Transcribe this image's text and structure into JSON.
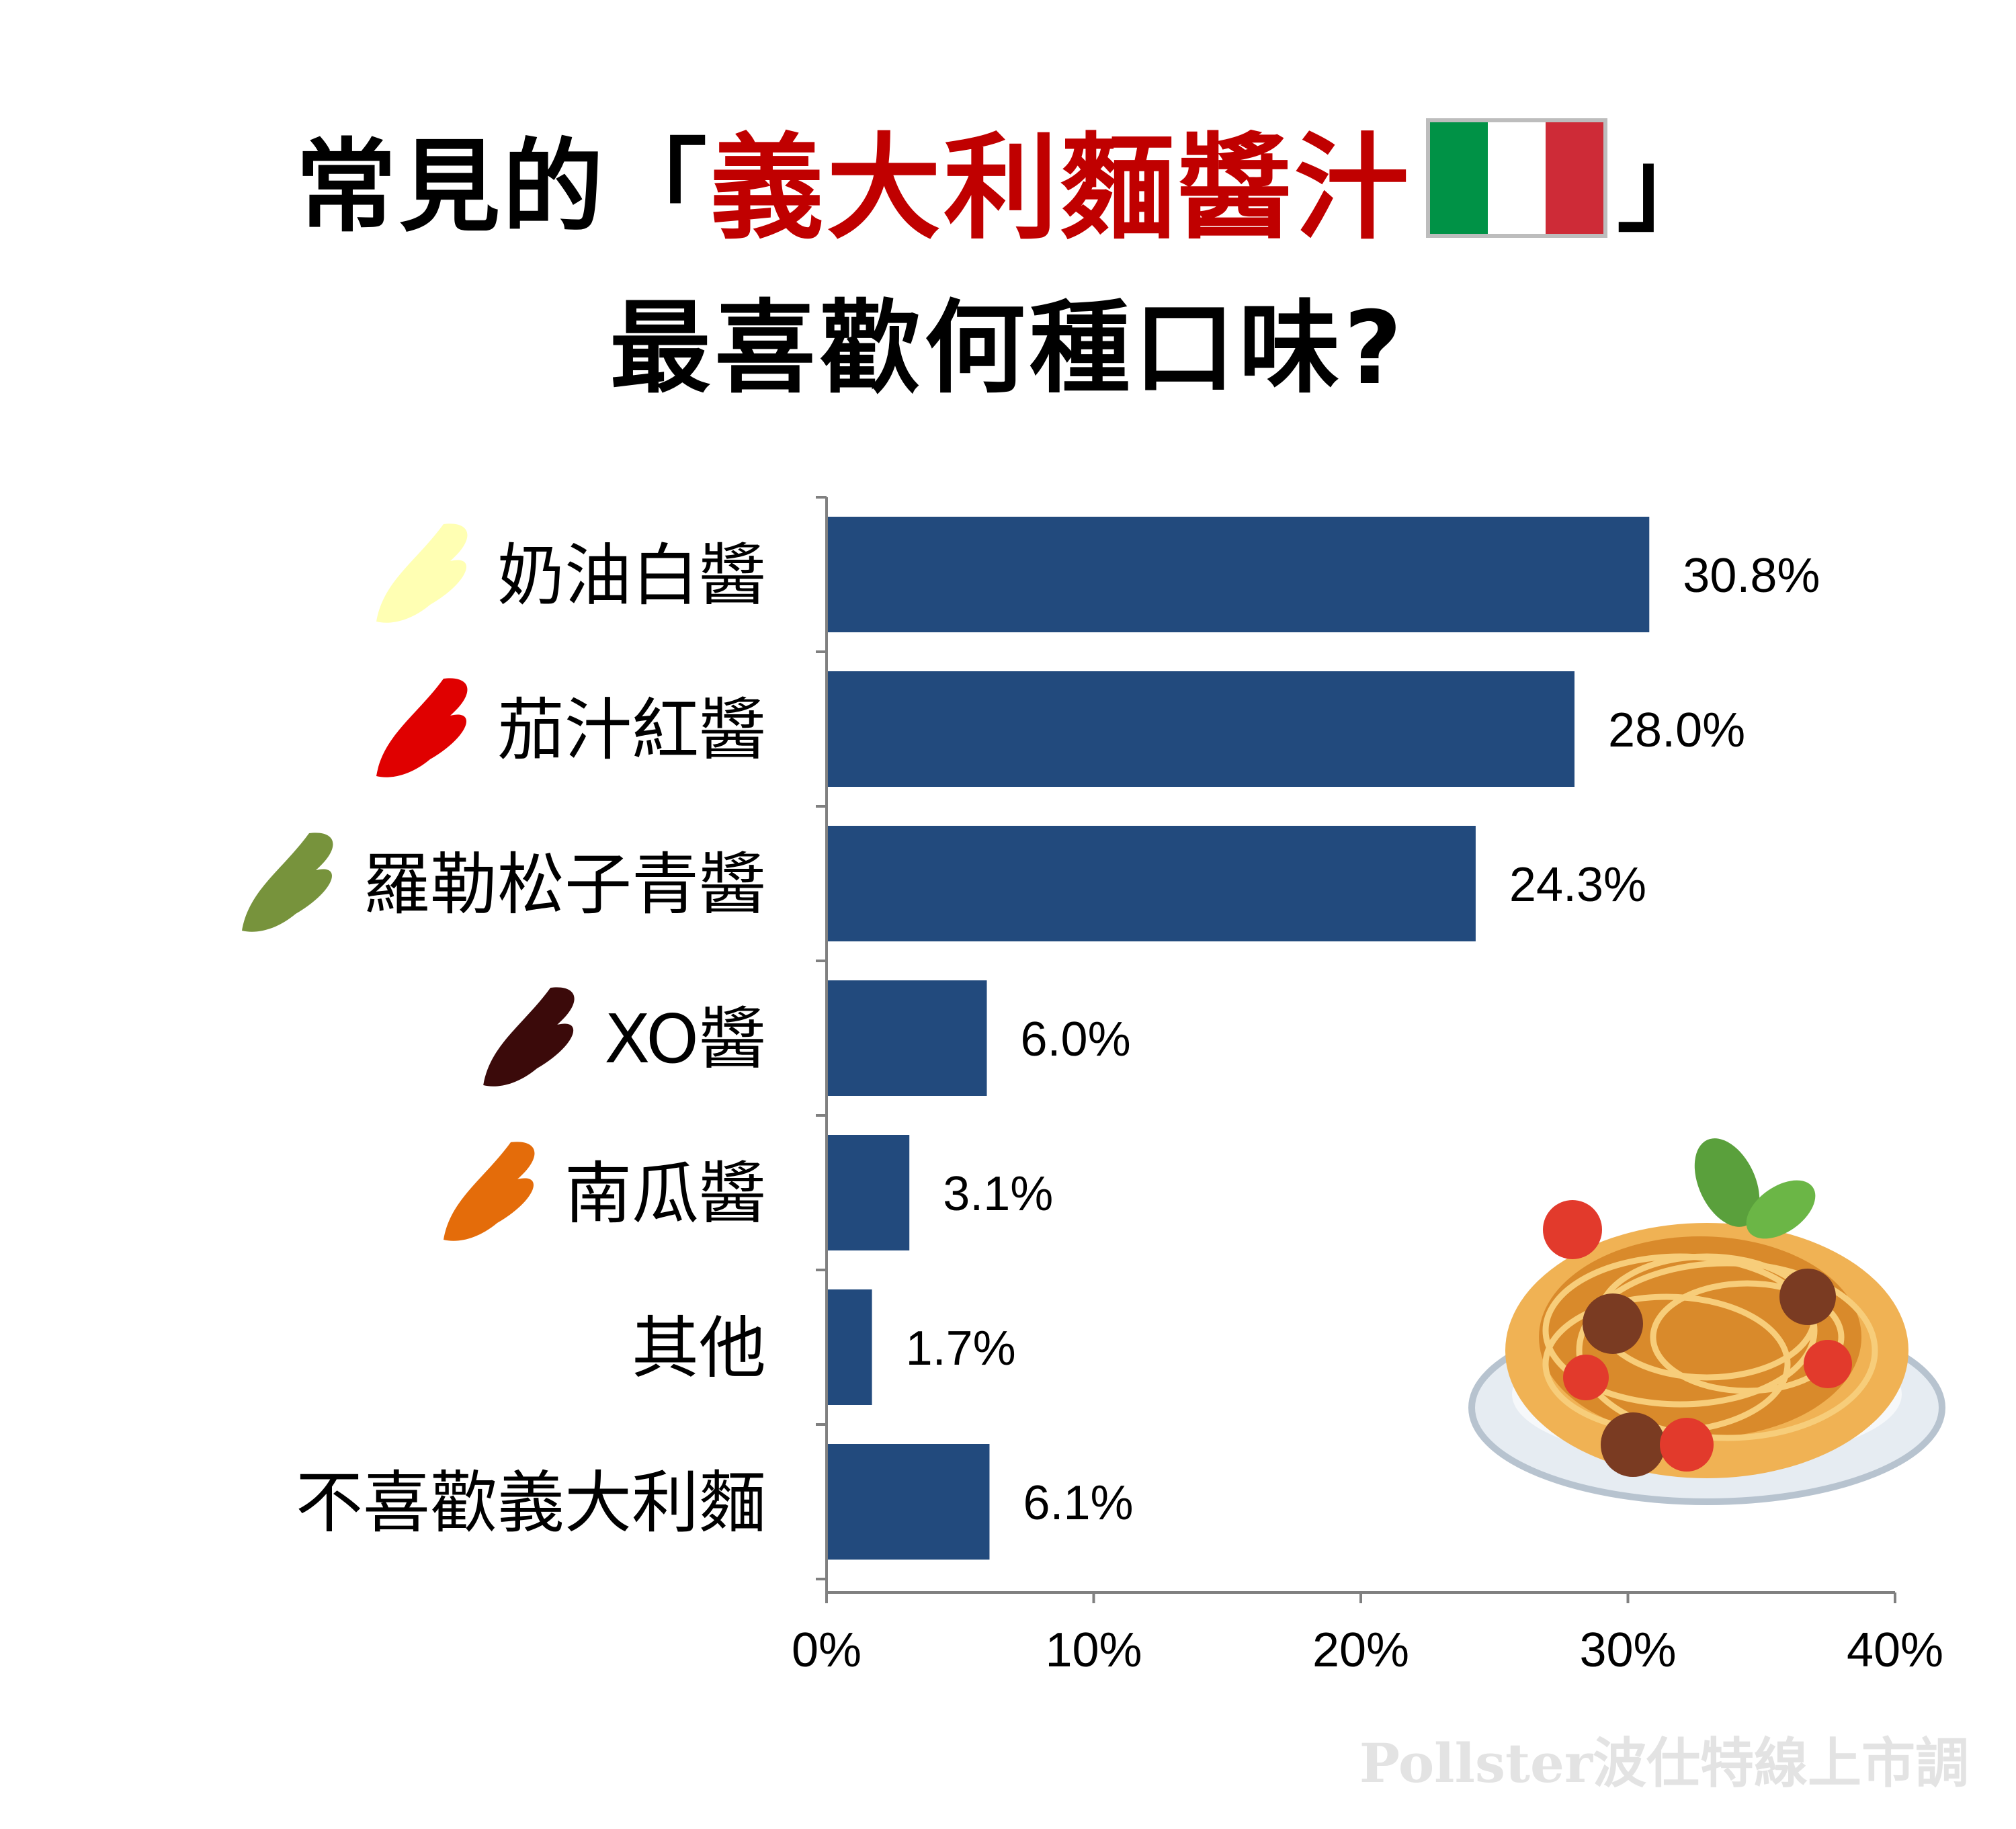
{
  "title": {
    "prefix": "常見的「",
    "highlight": "義大利麵醬汁",
    "suffix": "」",
    "line2": "最喜歡何種口味?"
  },
  "flag_colors": [
    "#009246",
    "#ffffff",
    "#ce2b37"
  ],
  "bar_color": "#224a7d",
  "chart_data": {
    "type": "bar",
    "orientation": "horizontal",
    "categories": [
      "奶油白醬",
      "茄汁紅醬",
      "羅勒松子青醬",
      "XO醬",
      "南瓜醬",
      "其他",
      "不喜歡義大利麵"
    ],
    "values": [
      30.8,
      28.0,
      24.3,
      6.0,
      3.1,
      1.7,
      6.1
    ],
    "value_labels": [
      "30.8%",
      "28.0%",
      "24.3%",
      "6.0%",
      "3.1%",
      "1.7%",
      "6.1%"
    ],
    "swatch_colors": [
      "#ffffb3",
      "#e00000",
      "#77933c",
      "#3b0a0a",
      "#e46c0a",
      null,
      null
    ],
    "xlim": [
      0,
      40
    ],
    "xticks": [
      0,
      10,
      20,
      30,
      40
    ],
    "xtick_labels": [
      "0%",
      "10%",
      "20%",
      "30%",
      "40%"
    ],
    "grid": false
  },
  "watermark": "Pollster波仕特線上市調"
}
